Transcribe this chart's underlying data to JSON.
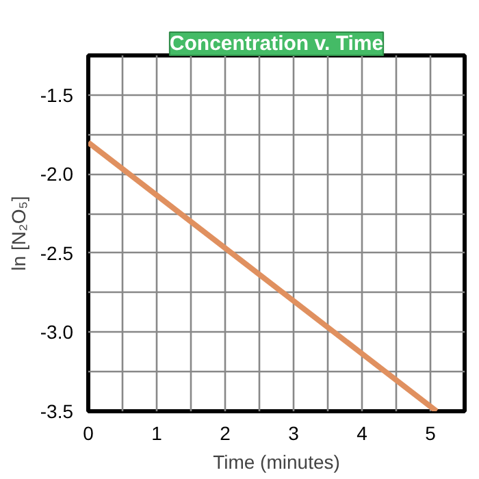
{
  "chart_data": {
    "type": "line",
    "title": "Concentration v. Time",
    "xlabel": "Time (minutes)",
    "ylabel": "ln [N₂O₅]",
    "x": [
      0,
      5.09
    ],
    "series": [
      {
        "color": "#e0905f",
        "values": [
          -1.8,
          -3.5
        ]
      }
    ],
    "xlim": [
      0,
      5.5
    ],
    "xticks": [
      0,
      {
        "value": 0.5,
        "label": null
      },
      1,
      {
        "value": 1.5,
        "label": null
      },
      2,
      {
        "value": 2.5,
        "label": null
      },
      3,
      {
        "value": 3.5,
        "label": null
      },
      4,
      {
        "value": 4.5,
        "label": null
      },
      5,
      {
        "value": 5.5,
        "label": null
      }
    ],
    "ylim": [
      -3.5,
      -1.25
    ],
    "yticks": [
      {
        "value": -3.5,
        "label": "-3.5"
      },
      {
        "value": -3.25,
        "label": null
      },
      {
        "value": -3.0,
        "label": "-3.0"
      },
      {
        "value": -2.75,
        "label": null
      },
      {
        "value": -2.5,
        "label": "-2.5"
      },
      {
        "value": -2.25,
        "label": null
      },
      {
        "value": -2.0,
        "label": "-2.0"
      },
      {
        "value": -1.75,
        "label": null
      },
      {
        "value": -1.5,
        "label": "-1.5"
      },
      {
        "value": -1.25,
        "label": null
      }
    ],
    "grid": true,
    "marker": "none",
    "line_style": "solid"
  }
}
